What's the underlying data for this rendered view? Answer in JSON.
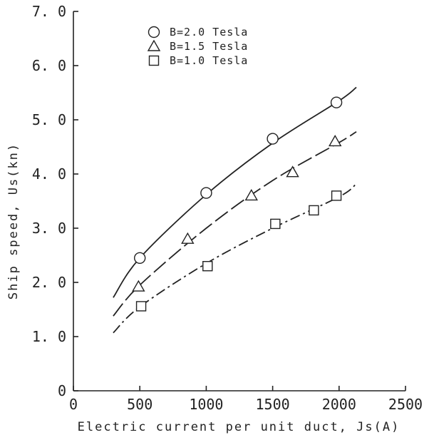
{
  "chart_data": {
    "type": "scatter",
    "title": "",
    "xlabel": "Electric current per unit duct, Js(A)",
    "ylabel": "Ship speed, Us(kn)",
    "xlim": [
      0,
      2500
    ],
    "ylim": [
      0,
      7.0
    ],
    "x_ticks": [
      0,
      500,
      1000,
      1500,
      2000,
      2500
    ],
    "x_tick_labels": [
      "0",
      "500",
      "1000",
      "1500",
      "2000",
      "2500"
    ],
    "y_ticks": [
      0,
      1.0,
      2.0,
      3.0,
      4.0,
      5.0,
      6.0,
      7.0
    ],
    "y_tick_labels": [
      "0",
      "1. 0",
      "2. 0",
      "3. 0",
      "4. 0",
      "5. 0",
      "6. 0",
      "7. 0"
    ],
    "grid": false,
    "legend_position": "top-left",
    "series": [
      {
        "name": "B=2.0 Tesla",
        "marker": "circle",
        "line_style": "solid",
        "points": {
          "x": [
            500,
            1000,
            1500,
            1980
          ],
          "y": [
            2.45,
            3.65,
            4.65,
            5.32
          ]
        },
        "fit": {
          "x": [
            300,
            500,
            1000,
            1500,
            2000,
            2130
          ],
          "y": [
            1.72,
            2.45,
            3.62,
            4.57,
            5.35,
            5.6
          ]
        }
      },
      {
        "name": "B=1.5 Tesla",
        "marker": "triangle",
        "line_style": "long-dash",
        "points": {
          "x": [
            490,
            860,
            1340,
            1650,
            1970
          ],
          "y": [
            1.92,
            2.8,
            3.6,
            4.03,
            4.6
          ]
        },
        "fit": {
          "x": [
            300,
            500,
            1000,
            1500,
            2000,
            2130
          ],
          "y": [
            1.38,
            1.95,
            3.0,
            3.88,
            4.58,
            4.78
          ]
        }
      },
      {
        "name": "B=1.0 Tesla",
        "marker": "square",
        "line_style": "dash-dot",
        "points": {
          "x": [
            510,
            1010,
            1520,
            1810,
            1980
          ],
          "y": [
            1.56,
            2.3,
            3.08,
            3.33,
            3.6
          ]
        },
        "fit": {
          "x": [
            300,
            500,
            1000,
            1500,
            2000,
            2130
          ],
          "y": [
            1.07,
            1.55,
            2.35,
            3.0,
            3.58,
            3.82
          ]
        }
      }
    ]
  }
}
